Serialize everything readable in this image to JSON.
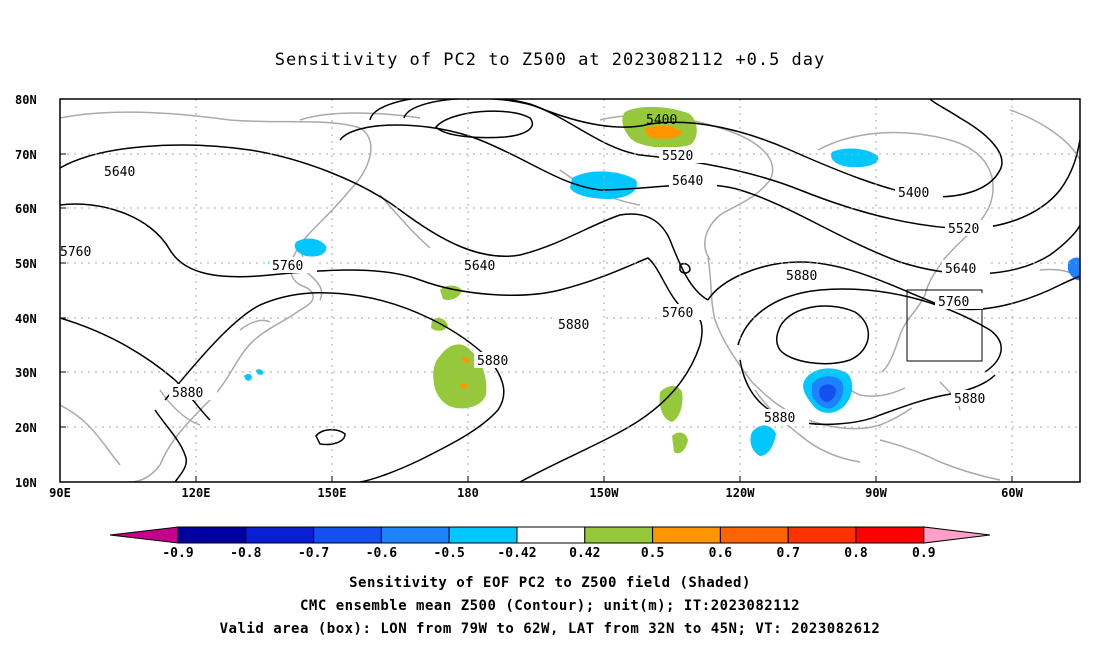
{
  "title": "Sensitivity of PC2 to Z500 at 2023082112 +0.5 day",
  "lat_labels": [
    "80N",
    "70N",
    "60N",
    "50N",
    "40N",
    "30N",
    "20N",
    "10N"
  ],
  "lon_labels": [
    "90E",
    "120E",
    "150E",
    "180",
    "150W",
    "120W",
    "90W",
    "60W"
  ],
  "contour_levels": [
    "5400",
    "5520",
    "5640",
    "5760",
    "5880"
  ],
  "contour_labels": [
    "5640",
    "5760",
    "5760",
    "5640",
    "5640",
    "5520",
    "5400",
    "5400",
    "5520",
    "5640",
    "5760",
    "5880",
    "5880",
    "5760",
    "5880",
    "5880",
    "5880",
    "5880"
  ],
  "colorbar": {
    "tick_labels": [
      "-0.9",
      "-0.8",
      "-0.7",
      "-0.6",
      "-0.5",
      "-0.42",
      "0.42",
      "0.5",
      "0.6",
      "0.7",
      "0.8",
      "0.9"
    ],
    "colors": [
      "#c4008a",
      "#0000a0",
      "#0a1ed2",
      "#1450f0",
      "#1e82ff",
      "#00c8ff",
      "#ffffff",
      "#96c83c",
      "#ff9600",
      "#ff6400",
      "#ff3200",
      "#ff0000",
      "#ffa0c8"
    ]
  },
  "valid_box": {
    "lon_from": "79W",
    "lon_to": "62W",
    "lat_from": "32N",
    "lat_to": "45N"
  },
  "captions": [
    "Sensitivity of EOF PC2 to Z500 field (Shaded)",
    "CMC ensemble mean Z500 (Contour); unit(m); IT:2023082112",
    "Valid area (box): LON from 79W to 62W, LAT from 32N to 45N; VT: 2023082612"
  ]
}
